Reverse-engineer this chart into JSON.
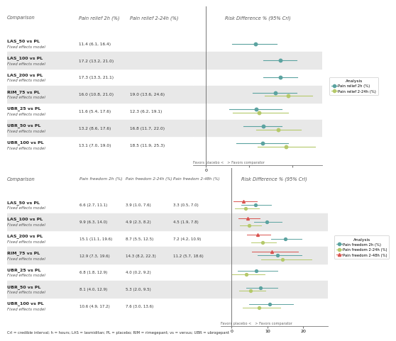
{
  "panel1": {
    "headers": [
      "Comparison",
      "Pain relief 2h (%)",
      "Pain relief 2-24h (%)",
      "Risk Difference % (95% CrI)"
    ],
    "rows": [
      {
        "label": "LAS_50 vs PL",
        "sublabel": "Fixed effects model",
        "col1": "11.4 (6.1, 16.4)",
        "col2": null,
        "dot1": 11.4,
        "lo1": 6.1,
        "hi1": 16.4,
        "dot2": null,
        "lo2": null,
        "hi2": null,
        "shaded": false
      },
      {
        "label": "LAS_100 vs PL",
        "sublabel": "Fixed effects model",
        "col1": "17.2 (13.2, 21.0)",
        "col2": null,
        "dot1": 17.2,
        "lo1": 13.2,
        "hi1": 21.0,
        "dot2": null,
        "lo2": null,
        "hi2": null,
        "shaded": true
      },
      {
        "label": "LAS_200 vs PL",
        "sublabel": "Fixed effects model",
        "col1": "17.3 (13.3, 21.1)",
        "col2": null,
        "dot1": 17.3,
        "lo1": 13.3,
        "hi1": 21.1,
        "dot2": null,
        "lo2": null,
        "hi2": null,
        "shaded": false
      },
      {
        "label": "RIM_75 vs PL",
        "sublabel": "Fixed effects model",
        "col1": "16.0 (10.8, 21.0)",
        "col2": "19.0 (13.6, 24.6)",
        "dot1": 16.0,
        "lo1": 10.8,
        "hi1": 21.0,
        "dot2": 19.0,
        "lo2": 13.6,
        "hi2": 24.6,
        "shaded": true
      },
      {
        "label": "UBR_25 vs PL",
        "sublabel": "Fixed effects model",
        "col1": "11.6 (5.4, 17.6)",
        "col2": "12.3 (6.2, 19.1)",
        "dot1": 11.6,
        "lo1": 5.4,
        "hi1": 17.6,
        "dot2": 12.3,
        "lo2": 6.2,
        "hi2": 19.1,
        "shaded": false
      },
      {
        "label": "UBR_50 vs PL",
        "sublabel": "Fixed effects model",
        "col1": "13.2 (8.6, 17.6)",
        "col2": "16.8 (11.7, 22.0)",
        "dot1": 13.2,
        "lo1": 8.6,
        "hi1": 17.6,
        "dot2": 16.8,
        "lo2": 11.7,
        "hi2": 22.0,
        "shaded": true
      },
      {
        "label": "UBR_100 vs PL",
        "sublabel": "Fixed effects model",
        "col1": "13.1 (7.0, 19.0)",
        "col2": "18.5 (11.9, 25.3)",
        "dot1": 13.1,
        "lo1": 7.0,
        "hi1": 19.0,
        "dot2": 18.5,
        "lo2": 11.9,
        "hi2": 25.3,
        "shaded": false
      }
    ],
    "xmin": -3,
    "xmax": 27,
    "xticks": [
      0,
      10,
      20
    ],
    "color1": "#5ba3a0",
    "color2": "#b5c96a",
    "legend_labels": [
      "Pain relief 2h (%)",
      "Pain relief 2-24h (%)"
    ]
  },
  "panel2": {
    "headers": [
      "Comparison",
      "Pain freedom 2h (%)",
      "Pain freedom 2-24h (%)",
      "Pain freedom 2-48h (%)",
      "Risk Difference % (95% CrI)"
    ],
    "rows": [
      {
        "label": "LAS_50 vs PL",
        "sublabel": "Fixed effects model",
        "col1": "6.6 (2.7, 11.1)",
        "col2": "3.9 (1.0, 7.6)",
        "col3": "3.3 (0.5, 7.0)",
        "dot1": 6.6,
        "lo1": 2.7,
        "hi1": 11.1,
        "dot2": 3.9,
        "lo2": 1.0,
        "hi2": 7.6,
        "dot3": 3.3,
        "lo3": 0.5,
        "hi3": 7.0,
        "shaded": false
      },
      {
        "label": "LAS_100 vs PL",
        "sublabel": "Fixed effects model",
        "col1": "9.9 (6.3, 14.0)",
        "col2": "4.9 (2.3, 8.2)",
        "col3": "4.5 (1.9, 7.8)",
        "dot1": 9.9,
        "lo1": 6.3,
        "hi1": 14.0,
        "dot2": 4.9,
        "lo2": 2.3,
        "hi2": 8.2,
        "dot3": 4.5,
        "lo3": 1.9,
        "hi3": 7.8,
        "shaded": true
      },
      {
        "label": "LAS_200 vs PL",
        "sublabel": "Fixed effects model",
        "col1": "15.1 (11.1, 19.6)",
        "col2": "8.7 (5.5, 12.5)",
        "col3": "7.2 (4.2, 10.9)",
        "dot1": 15.1,
        "lo1": 11.1,
        "hi1": 19.6,
        "dot2": 8.7,
        "lo2": 5.5,
        "hi2": 12.5,
        "dot3": 7.2,
        "lo3": 4.2,
        "hi3": 10.9,
        "shaded": false
      },
      {
        "label": "RIM_75 vs PL",
        "sublabel": "Fixed effects model",
        "col1": "12.9 (7.3, 19.6)",
        "col2": "14.3 (8.2, 22.3)",
        "col3": "11.2 (5.7, 18.6)",
        "dot1": 12.9,
        "lo1": 7.3,
        "hi1": 19.6,
        "dot2": 14.3,
        "lo2": 8.2,
        "hi2": 22.3,
        "dot3": 11.2,
        "lo3": 5.7,
        "hi3": 18.6,
        "shaded": true
      },
      {
        "label": "UBR_25 vs PL",
        "sublabel": "Fixed effects model",
        "col1": "6.8 (1.8, 12.9)",
        "col2": "4.0 (0.2, 9.2)",
        "col3": null,
        "dot1": 6.8,
        "lo1": 1.8,
        "hi1": 12.9,
        "dot2": 4.0,
        "lo2": 0.2,
        "hi2": 9.2,
        "dot3": null,
        "lo3": null,
        "hi3": null,
        "shaded": false
      },
      {
        "label": "UBR_50 vs PL",
        "sublabel": "Fixed effects model",
        "col1": "8.1 (4.0, 12.9)",
        "col2": "5.3 (2.0, 9.5)",
        "col3": null,
        "dot1": 8.1,
        "lo1": 4.0,
        "hi1": 12.9,
        "dot2": 5.3,
        "lo2": 2.0,
        "hi2": 9.5,
        "dot3": null,
        "lo3": null,
        "hi3": null,
        "shaded": true
      },
      {
        "label": "UBR_100 vs PL",
        "sublabel": "Fixed effects model",
        "col1": "10.6 (4.9, 17.2)",
        "col2": "7.6 (3.0, 13.6)",
        "col3": null,
        "dot1": 10.6,
        "lo1": 4.9,
        "hi1": 17.2,
        "dot2": 7.6,
        "lo2": 3.0,
        "hi2": 13.6,
        "dot3": null,
        "lo3": null,
        "hi3": null,
        "shaded": false
      }
    ],
    "xmin": -3,
    "xmax": 27,
    "xticks": [
      0,
      10,
      20
    ],
    "color1": "#5ba3a0",
    "color2": "#b5c96a",
    "color3": "#d9534f",
    "legend_labels": [
      "Pain freedom 2h (%)",
      "Pain freedom 2-24h (%)",
      "Pain freedom 2-48h (%)"
    ]
  },
  "footnote": "CrI = credible interval; h = hours; LAS = lasmiditan; PL = placebo; RIM = rimegepant; vs = versus; UBR = ubrogepant",
  "bg_shaded": "#e8e8e8",
  "xlabel": "Favors placebo <   > Favors comparator"
}
